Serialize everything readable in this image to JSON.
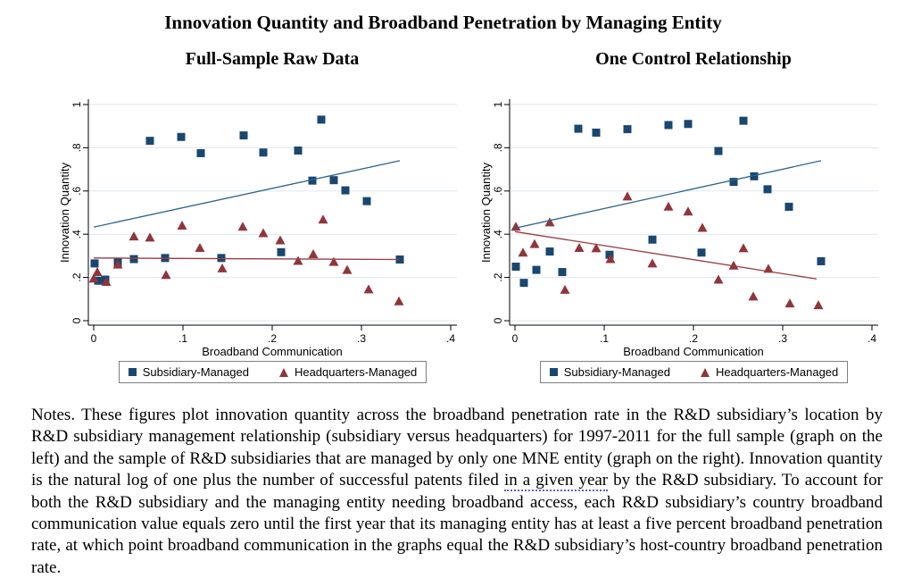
{
  "page": {
    "title": "Innovation Quantity and Broadband Penetration by Managing Entity"
  },
  "colors": {
    "navy": "#1a476f",
    "maroon": "#90353b",
    "blue_fit_line": "#2d648f",
    "red_fit_line": "#9a3b41",
    "grid": "#dfe7f1",
    "axis": "#000000",
    "legend_border": "#7f7f7f"
  },
  "legend": {
    "series1": "Subsidiary-Managed",
    "series2": "Headquarters-Managed"
  },
  "chart_data": [
    {
      "type": "scatter",
      "title": "Full-Sample Raw Data",
      "xlabel": "Broadband Communication",
      "ylabel": "Innovation Quantity",
      "xlim": [
        0,
        0.4
      ],
      "ylim": [
        0,
        1
      ],
      "xticks": [
        0,
        0.1,
        0.2,
        0.3,
        0.4
      ],
      "xtick_labels": [
        "0",
        ".1",
        ".2",
        ".3",
        ".4"
      ],
      "yticks": [
        0,
        0.2,
        0.4,
        0.6,
        0.8,
        1
      ],
      "ytick_labels": [
        "0",
        ".2",
        ".4",
        ".6",
        ".8",
        "1"
      ],
      "grid": true,
      "legend_position": "bottom",
      "series": [
        {
          "name": "Subsidiary-Managed",
          "marker": "square",
          "color": "#1a476f",
          "line_color": "#2d648f",
          "points": [
            [
              0.001,
              0.265
            ],
            [
              0.005,
              0.185
            ],
            [
              0.013,
              0.19
            ],
            [
              0.027,
              0.27
            ],
            [
              0.045,
              0.285
            ],
            [
              0.063,
              0.832
            ],
            [
              0.08,
              0.29
            ],
            [
              0.098,
              0.85
            ],
            [
              0.12,
              0.775
            ],
            [
              0.143,
              0.29
            ],
            [
              0.168,
              0.857
            ],
            [
              0.19,
              0.778
            ],
            [
              0.21,
              0.317
            ],
            [
              0.229,
              0.787
            ],
            [
              0.245,
              0.648
            ],
            [
              0.255,
              0.93
            ],
            [
              0.269,
              0.65
            ],
            [
              0.282,
              0.603
            ],
            [
              0.306,
              0.553
            ],
            [
              0.343,
              0.283
            ]
          ],
          "fit_line": {
            "x1": 0,
            "y1": 0.433,
            "x2": 0.343,
            "y2": 0.74
          }
        },
        {
          "name": "Headquarters-Managed",
          "marker": "triangle",
          "color": "#90353b",
          "line_color": "#9a3b41",
          "points": [
            [
              0.0,
              0.195
            ],
            [
              0.004,
              0.225
            ],
            [
              0.014,
              0.18
            ],
            [
              0.027,
              0.26
            ],
            [
              0.045,
              0.39
            ],
            [
              0.063,
              0.385
            ],
            [
              0.081,
              0.212
            ],
            [
              0.099,
              0.44
            ],
            [
              0.119,
              0.337
            ],
            [
              0.144,
              0.242
            ],
            [
              0.167,
              0.435
            ],
            [
              0.19,
              0.405
            ],
            [
              0.209,
              0.372
            ],
            [
              0.229,
              0.277
            ],
            [
              0.246,
              0.308
            ],
            [
              0.257,
              0.468
            ],
            [
              0.269,
              0.272
            ],
            [
              0.284,
              0.235
            ],
            [
              0.308,
              0.145
            ],
            [
              0.342,
              0.09
            ]
          ],
          "fit_line": {
            "x1": 0,
            "y1": 0.29,
            "x2": 0.343,
            "y2": 0.283
          }
        }
      ]
    },
    {
      "type": "scatter",
      "title": "One Control Relationship",
      "xlabel": "Broadband Communication",
      "ylabel": "Innovation Quantity",
      "xlim": [
        0,
        0.4
      ],
      "ylim": [
        0,
        1
      ],
      "xticks": [
        0,
        0.1,
        0.2,
        0.3,
        0.4
      ],
      "xtick_labels": [
        "0",
        ".1",
        ".2",
        ".3",
        ".4"
      ],
      "yticks": [
        0,
        0.2,
        0.4,
        0.6,
        0.8,
        1
      ],
      "ytick_labels": [
        "0",
        ".2",
        ".4",
        ".6",
        ".8",
        "1"
      ],
      "grid": true,
      "legend_position": "bottom",
      "series": [
        {
          "name": "Subsidiary-Managed",
          "marker": "square",
          "color": "#1a476f",
          "line_color": "#2d648f",
          "points": [
            [
              0.001,
              0.25
            ],
            [
              0.01,
              0.175
            ],
            [
              0.024,
              0.235
            ],
            [
              0.039,
              0.32
            ],
            [
              0.053,
              0.225
            ],
            [
              0.071,
              0.888
            ],
            [
              0.091,
              0.87
            ],
            [
              0.106,
              0.305
            ],
            [
              0.126,
              0.886
            ],
            [
              0.154,
              0.375
            ],
            [
              0.172,
              0.905
            ],
            [
              0.194,
              0.91
            ],
            [
              0.209,
              0.315
            ],
            [
              0.228,
              0.785
            ],
            [
              0.245,
              0.642
            ],
            [
              0.256,
              0.925
            ],
            [
              0.268,
              0.668
            ],
            [
              0.283,
              0.608
            ],
            [
              0.307,
              0.527
            ],
            [
              0.343,
              0.275
            ]
          ],
          "fit_line": {
            "x1": 0,
            "y1": 0.428,
            "x2": 0.343,
            "y2": 0.74
          }
        },
        {
          "name": "Headquarters-Managed",
          "marker": "triangle",
          "color": "#90353b",
          "line_color": "#9a3b41",
          "points": [
            [
              0.001,
              0.435
            ],
            [
              0.009,
              0.315
            ],
            [
              0.022,
              0.355
            ],
            [
              0.039,
              0.455
            ],
            [
              0.056,
              0.143
            ],
            [
              0.072,
              0.337
            ],
            [
              0.091,
              0.335
            ],
            [
              0.107,
              0.285
            ],
            [
              0.126,
              0.575
            ],
            [
              0.154,
              0.265
            ],
            [
              0.172,
              0.528
            ],
            [
              0.194,
              0.505
            ],
            [
              0.21,
              0.43
            ],
            [
              0.228,
              0.19
            ],
            [
              0.245,
              0.255
            ],
            [
              0.256,
              0.335
            ],
            [
              0.267,
              0.112
            ],
            [
              0.284,
              0.24
            ],
            [
              0.308,
              0.08
            ],
            [
              0.34,
              0.072
            ]
          ],
          "fit_line": {
            "x1": 0,
            "y1": 0.412,
            "x2": 0.338,
            "y2": 0.193
          }
        }
      ]
    }
  ],
  "notes": {
    "part1": "Notes. These figures plot innovation quantity across the broadband penetration rate in the R&D subsidiary’s location by R&D subsidiary management relationship (subsidiary versus headquarters) for 1997-2011 for the full sample (graph on the left) and the sample of R&D subsidiaries that are managed by only one MNE entity (graph on the right). Innovation quantity is the natural log of one plus the number of successful patents filed ",
    "underlined_phrase": "in a given year",
    "part2": " by the R&D subsidiary. To account for both the R&D subsidiary and the managing entity needing broadband access, each R&D subsidiary’s country broadband communication value equals zero until the first year that its managing entity has at least a five percent broadband penetration rate, at which point broadband communication in the graphs equal the R&D subsidiary’s host-country broadband penetration rate."
  }
}
